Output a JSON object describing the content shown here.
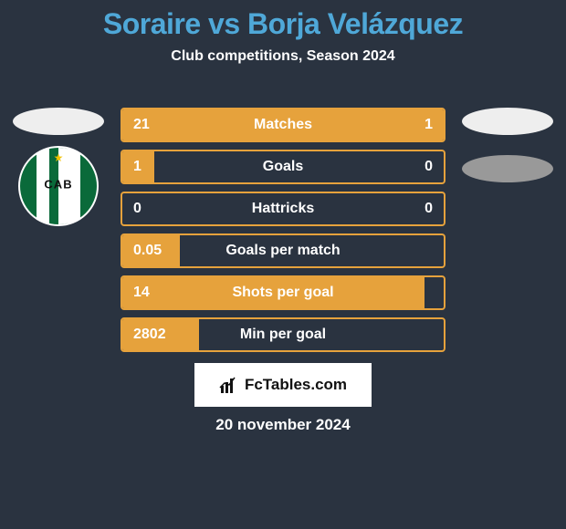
{
  "title": "Soraire vs Borja Velázquez",
  "subtitle": "Club competitions, Season 2024",
  "date": "20 november 2024",
  "logo_text": "FcTables.com",
  "colors": {
    "background": "#2a3340",
    "title": "#4fa8d8",
    "bar_fill": "#e6a23c",
    "bar_border": "#e6a23c",
    "logo_bg": "#ffffff"
  },
  "badge": {
    "text": "CAB",
    "green": "#0a6a3a",
    "star": "#f2c200"
  },
  "bars": [
    {
      "label": "Matches",
      "left": "21",
      "right": "1",
      "left_pct": 75,
      "right_pct": 25
    },
    {
      "label": "Goals",
      "left": "1",
      "right": "0",
      "left_pct": 10,
      "right_pct": 0
    },
    {
      "label": "Hattricks",
      "left": "0",
      "right": "0",
      "left_pct": 0,
      "right_pct": 0
    },
    {
      "label": "Goals per match",
      "left": "0.05",
      "right": "",
      "left_pct": 18,
      "right_pct": 0
    },
    {
      "label": "Shots per goal",
      "left": "14",
      "right": "",
      "left_pct": 94,
      "right_pct": 0
    },
    {
      "label": "Min per goal",
      "left": "2802",
      "right": "",
      "left_pct": 24,
      "right_pct": 0
    }
  ],
  "bar_style": {
    "height": 38,
    "gap": 8,
    "border_radius": 4,
    "font_size": 16
  }
}
